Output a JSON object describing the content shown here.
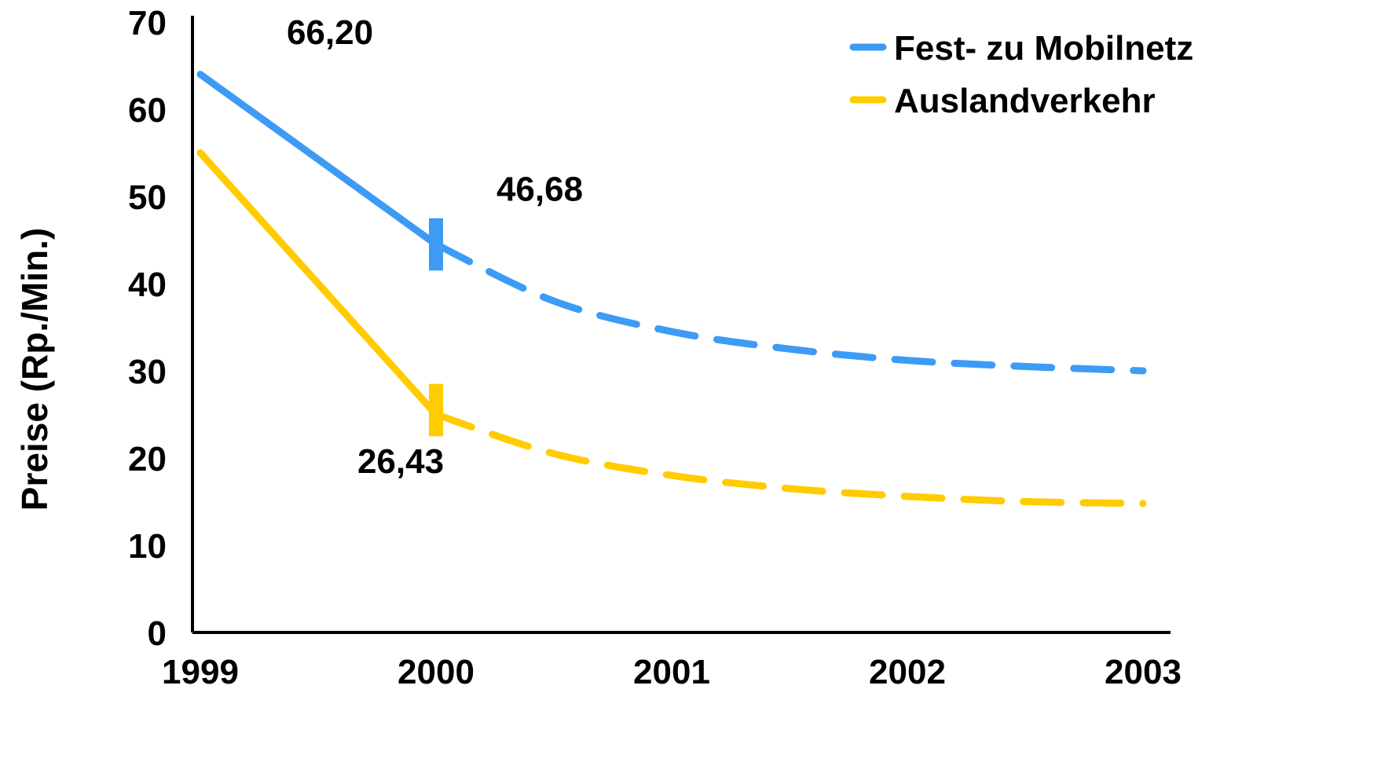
{
  "chart_data": {
    "type": "line",
    "x": [
      1999,
      2000,
      2001,
      2002,
      2003
    ],
    "xticks": [
      "1999",
      "2000",
      "2001",
      "2002",
      "2003"
    ],
    "ylabel": "Preise (Rp./Min.)",
    "xlabel": "",
    "ylim": [
      0,
      70
    ],
    "yticks": [
      "0",
      "10",
      "20",
      "30",
      "40",
      "50",
      "60",
      "70"
    ],
    "grid": false,
    "legend_position": "top-right",
    "series": [
      {
        "name": "Fest- zu Mobilnetz",
        "color": "#3d9bf5",
        "actual": [
          [
            1999,
            64.0
          ],
          [
            2000,
            44.5
          ]
        ],
        "forecast": [
          [
            2000,
            44.5
          ],
          [
            2000.5,
            38.0
          ],
          [
            2001,
            34.5
          ],
          [
            2001.5,
            32.5
          ],
          [
            2002,
            31.2
          ],
          [
            2002.5,
            30.5
          ],
          [
            2003,
            30.0
          ]
        ],
        "marker_x": 2000,
        "marker_range": [
          41.5,
          47.5
        ]
      },
      {
        "name": "Auslandverkehr",
        "color": "#ffcc00",
        "actual": [
          [
            1999,
            55.0
          ],
          [
            2000,
            25.0
          ]
        ],
        "forecast": [
          [
            2000,
            25.0
          ],
          [
            2000.5,
            20.5
          ],
          [
            2001,
            18.0
          ],
          [
            2001.5,
            16.5
          ],
          [
            2002,
            15.6
          ],
          [
            2002.5,
            15.0
          ],
          [
            2003,
            14.8
          ]
        ],
        "marker_x": 2000,
        "marker_range": [
          22.5,
          28.5
        ]
      }
    ],
    "annotations": [
      {
        "text": "66,20",
        "x": 1999.55,
        "y": 67.5
      },
      {
        "text": "46,68",
        "x": 2000.44,
        "y": 49.5
      },
      {
        "text": "26,43",
        "x": 1999.85,
        "y": 18.3
      }
    ]
  }
}
